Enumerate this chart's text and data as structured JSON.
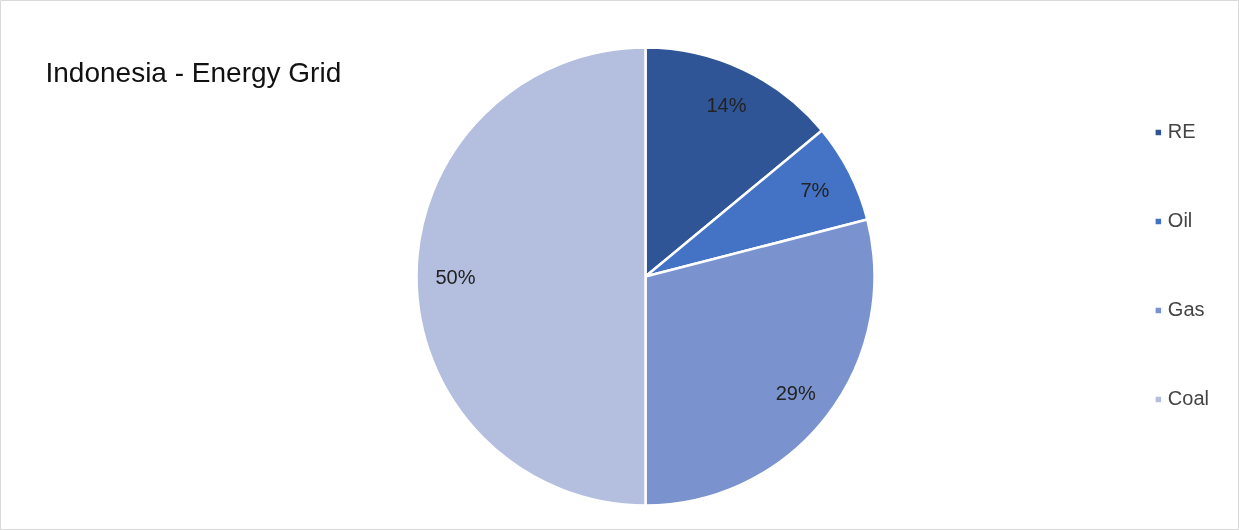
{
  "chart_data": {
    "type": "pie",
    "title": "Indonesia - Energy Grid",
    "categories": [
      "RE",
      "Oil",
      "Gas",
      "Coal"
    ],
    "values": [
      14,
      7,
      29,
      50
    ],
    "colors": [
      "#2f5597",
      "#4472c4",
      "#7a93cf",
      "#b4bfdf"
    ],
    "value_labels": [
      "14%",
      "7%",
      "29%",
      "50%"
    ],
    "legend": "right"
  }
}
